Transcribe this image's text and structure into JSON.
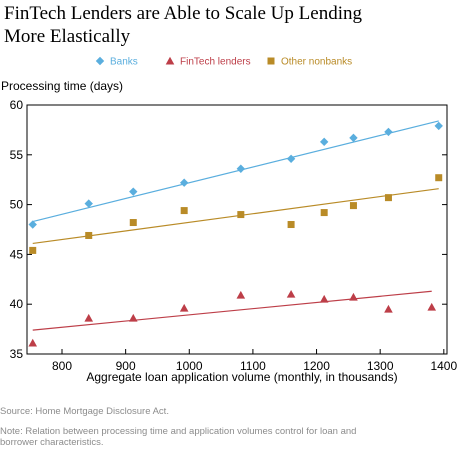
{
  "page": {
    "title_line1": "FinTech Lenders are Able to Scale Up Lending",
    "title_line2": "More Elastically",
    "source": "Source: Home Mortgage Disclosure Act.",
    "note_line1": "Note: Relation between processing time and application volumes control for loan and",
    "note_line2": "borrower characteristics."
  },
  "chart_data": {
    "type": "scatter",
    "title": "FinTech Lenders are Able to Scale Up Lending More Elastically",
    "ylabel": "Processing time (days)",
    "xlabel": "Aggregate loan application volume (monthly, in thousands)",
    "xlim": [
      745,
      1405
    ],
    "ylim": [
      35,
      60
    ],
    "x_ticks": [
      800,
      900,
      1000,
      1100,
      1200,
      1300,
      1400
    ],
    "y_ticks": [
      35,
      40,
      45,
      50,
      55,
      60
    ],
    "grid": false,
    "legend_position": "top",
    "series": [
      {
        "name": "Banks",
        "marker": "diamond",
        "color": "#5aaede",
        "x": [
          754,
          842,
          912,
          992,
          1081,
          1160,
          1212,
          1258,
          1313,
          1392
        ],
        "y": [
          48.0,
          50.1,
          51.3,
          52.2,
          53.6,
          54.6,
          56.3,
          56.7,
          57.3,
          57.9
        ],
        "trend": [
          [
            754,
            48.3
          ],
          [
            1392,
            58.4
          ]
        ]
      },
      {
        "name": "FinTech lenders",
        "marker": "triangle",
        "color": "#bd3e48",
        "x": [
          754,
          842,
          912,
          992,
          1081,
          1160,
          1212,
          1258,
          1313,
          1381
        ],
        "y": [
          36.1,
          38.6,
          38.6,
          39.6,
          40.9,
          41.0,
          40.5,
          40.7,
          39.5,
          39.7
        ],
        "trend": [
          [
            754,
            37.4
          ],
          [
            1381,
            41.3
          ]
        ]
      },
      {
        "name": "Other nonbanks",
        "marker": "square",
        "color": "#b98b27",
        "x": [
          754,
          842,
          912,
          992,
          1081,
          1160,
          1212,
          1258,
          1313,
          1392
        ],
        "y": [
          45.4,
          46.9,
          48.2,
          49.4,
          49.0,
          48.0,
          49.2,
          49.9,
          50.7,
          52.7
        ],
        "trend": [
          [
            754,
            46.1
          ],
          [
            1392,
            51.6
          ]
        ]
      }
    ]
  }
}
